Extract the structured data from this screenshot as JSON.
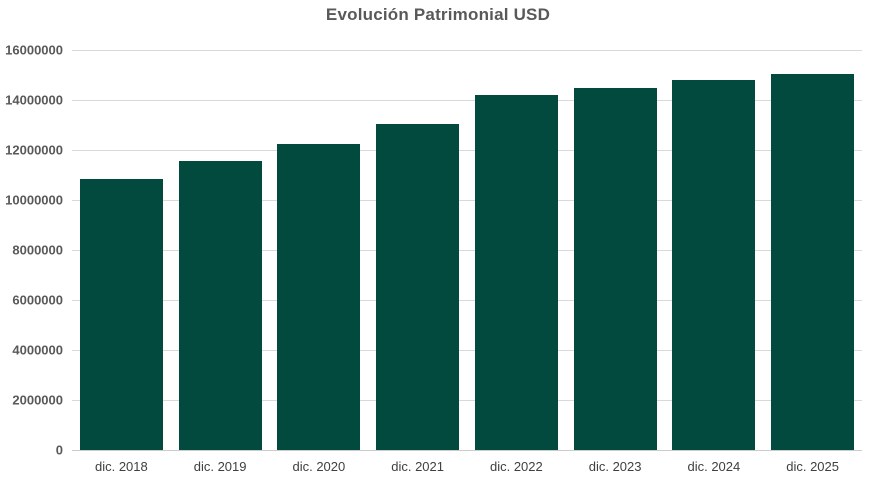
{
  "chart_data": {
    "type": "bar",
    "title": "Evolución Patrimonial USD",
    "categories": [
      "dic. 2018",
      "dic. 2019",
      "dic. 2020",
      "dic. 2021",
      "dic. 2022",
      "dic. 2023",
      "dic. 2024",
      "dic. 2025"
    ],
    "values": [
      10850000,
      11550000,
      12250000,
      13050000,
      14200000,
      14500000,
      14800000,
      15050000
    ],
    "xlabel": "",
    "ylabel": "",
    "ylim": [
      0,
      16000000
    ],
    "ytick_values": [
      0,
      2000000,
      4000000,
      6000000,
      8000000,
      10000000,
      12000000,
      14000000,
      16000000
    ],
    "ytick_labels": [
      "0",
      "2000000",
      "4000000",
      "6000000",
      "8000000",
      "10000000",
      "12000000",
      "14000000",
      "16000000"
    ],
    "grid": "horizontal",
    "legend_position": "none",
    "bar_gap_ratio": 0.16
  },
  "colors": {
    "bar_fill": "#02493e",
    "gridline": "#d9d9d9",
    "axis_line": "#cccccc",
    "title_text": "#595959",
    "y_tick_text": "#595959",
    "x_tick_text": "#404040",
    "background": "#ffffff"
  }
}
